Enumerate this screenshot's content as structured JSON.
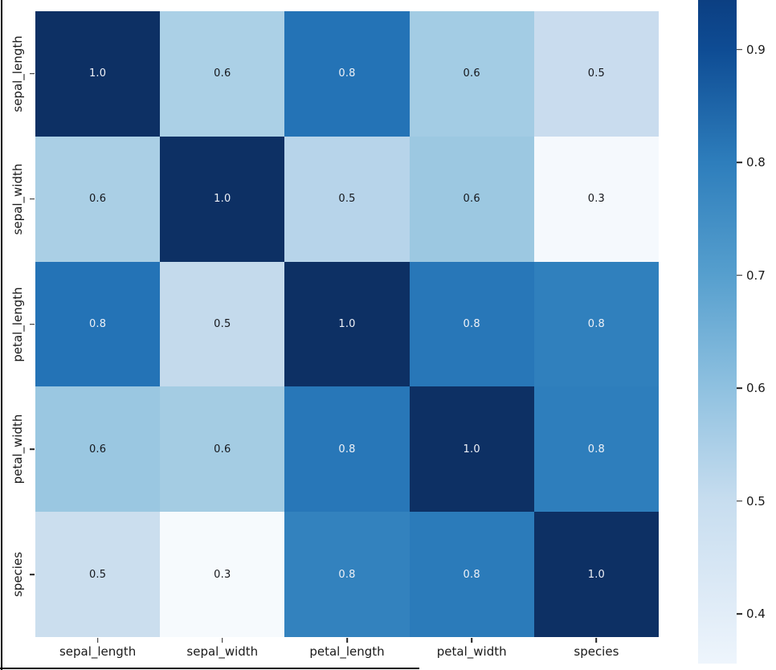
{
  "window": {
    "background": "#ffffff",
    "border_color": "#000000"
  },
  "chart_data": {
    "type": "heatmap",
    "title": "",
    "colormap": "Blues",
    "categories": [
      "sepal_length",
      "sepal_width",
      "petal_length",
      "petal_width",
      "species"
    ],
    "matrix": [
      [
        1.0,
        0.6,
        0.8,
        0.6,
        0.5
      ],
      [
        0.6,
        1.0,
        0.5,
        0.6,
        0.3
      ],
      [
        0.8,
        0.5,
        1.0,
        0.8,
        0.8
      ],
      [
        0.6,
        0.6,
        0.8,
        1.0,
        0.8
      ],
      [
        0.5,
        0.3,
        0.8,
        0.8,
        1.0
      ]
    ],
    "cell_labels": [
      [
        "1.0",
        "0.6",
        "0.8",
        "0.6",
        "0.5"
      ],
      [
        "0.6",
        "1.0",
        "0.5",
        "0.6",
        "0.3"
      ],
      [
        "0.8",
        "0.5",
        "1.0",
        "0.8",
        "0.8"
      ],
      [
        "0.6",
        "0.6",
        "0.8",
        "1.0",
        "0.8"
      ],
      [
        "0.5",
        "0.3",
        "0.8",
        "0.8",
        "1.0"
      ]
    ],
    "cell_colors": [
      [
        "#0d3064",
        "#abd0e6",
        "#2473b6",
        "#a3cce4",
        "#c9dcee"
      ],
      [
        "#aacfe5",
        "#0d3064",
        "#b7d4ea",
        "#9cc8e1",
        "#f5f9fd"
      ],
      [
        "#2473b6",
        "#c4daec",
        "#0d3064",
        "#2877b8",
        "#3080bd"
      ],
      [
        "#9ac7e1",
        "#a4cce3",
        "#2877b8",
        "#0d3064",
        "#2e7ebc"
      ],
      [
        "#cbdeee",
        "#f6fafd",
        "#3382be",
        "#2b7bba",
        "#0d3064"
      ]
    ],
    "annotation_text_light": "#eef1f7",
    "annotation_text_dark": "#16181d",
    "light_text_threshold": 0.75,
    "axis_text_color": "#1a1a1a",
    "tick_color": "#222222",
    "grid": false,
    "legend": "colorbar-right",
    "colorbar": {
      "ticks": [
        0.9,
        0.8,
        0.7,
        0.6,
        0.5,
        0.4
      ],
      "tick_labels": [
        "0.9",
        "0.8",
        "0.7",
        "0.6",
        "0.5",
        "0.4"
      ],
      "display_min": 0.356,
      "display_max": 0.944,
      "gradient_stops": [
        [
          0.0,
          "#0c3f82"
        ],
        [
          0.075,
          "#0e4c94"
        ],
        [
          0.246,
          "#2e7ebc"
        ],
        [
          0.415,
          "#569fce"
        ],
        [
          0.585,
          "#8fc1e0"
        ],
        [
          0.755,
          "#c7ddef"
        ],
        [
          0.926,
          "#e2edf8"
        ],
        [
          1.0,
          "#eef5fc"
        ]
      ]
    }
  }
}
